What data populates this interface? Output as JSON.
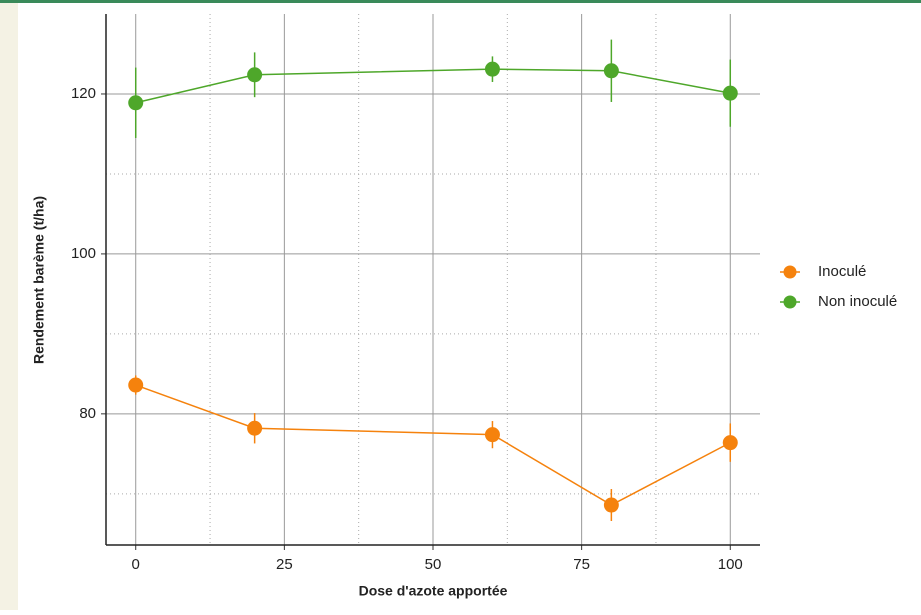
{
  "chart_data": {
    "type": "errorbar_line",
    "x_label": "Dose d'azote apportée",
    "y_label": "Rendement barème (t/ha)",
    "x": [
      0,
      20,
      60,
      80,
      100
    ],
    "series": [
      {
        "name": "Inoculé",
        "color": "#f5820d",
        "values": [
          83.6,
          78.2,
          77.4,
          68.6,
          76.4
        ],
        "errors": [
          1.2,
          1.9,
          1.7,
          2.0,
          2.4
        ]
      },
      {
        "name": "Non inoculé",
        "color": "#4ea72a",
        "values": [
          118.9,
          122.4,
          123.1,
          122.9,
          120.1
        ],
        "errors": [
          4.4,
          2.8,
          1.6,
          3.9,
          4.2
        ]
      }
    ],
    "xlim": [
      -5,
      105
    ],
    "xticks": [
      0,
      25,
      50,
      75,
      100
    ],
    "xminor": [
      12.5,
      37.5,
      62.5,
      87.5
    ],
    "ylim": [
      63.6,
      130
    ],
    "yticks": [
      80,
      100,
      120
    ],
    "yminor": [
      70,
      90,
      110
    ],
    "grid": true,
    "legend": "right"
  }
}
